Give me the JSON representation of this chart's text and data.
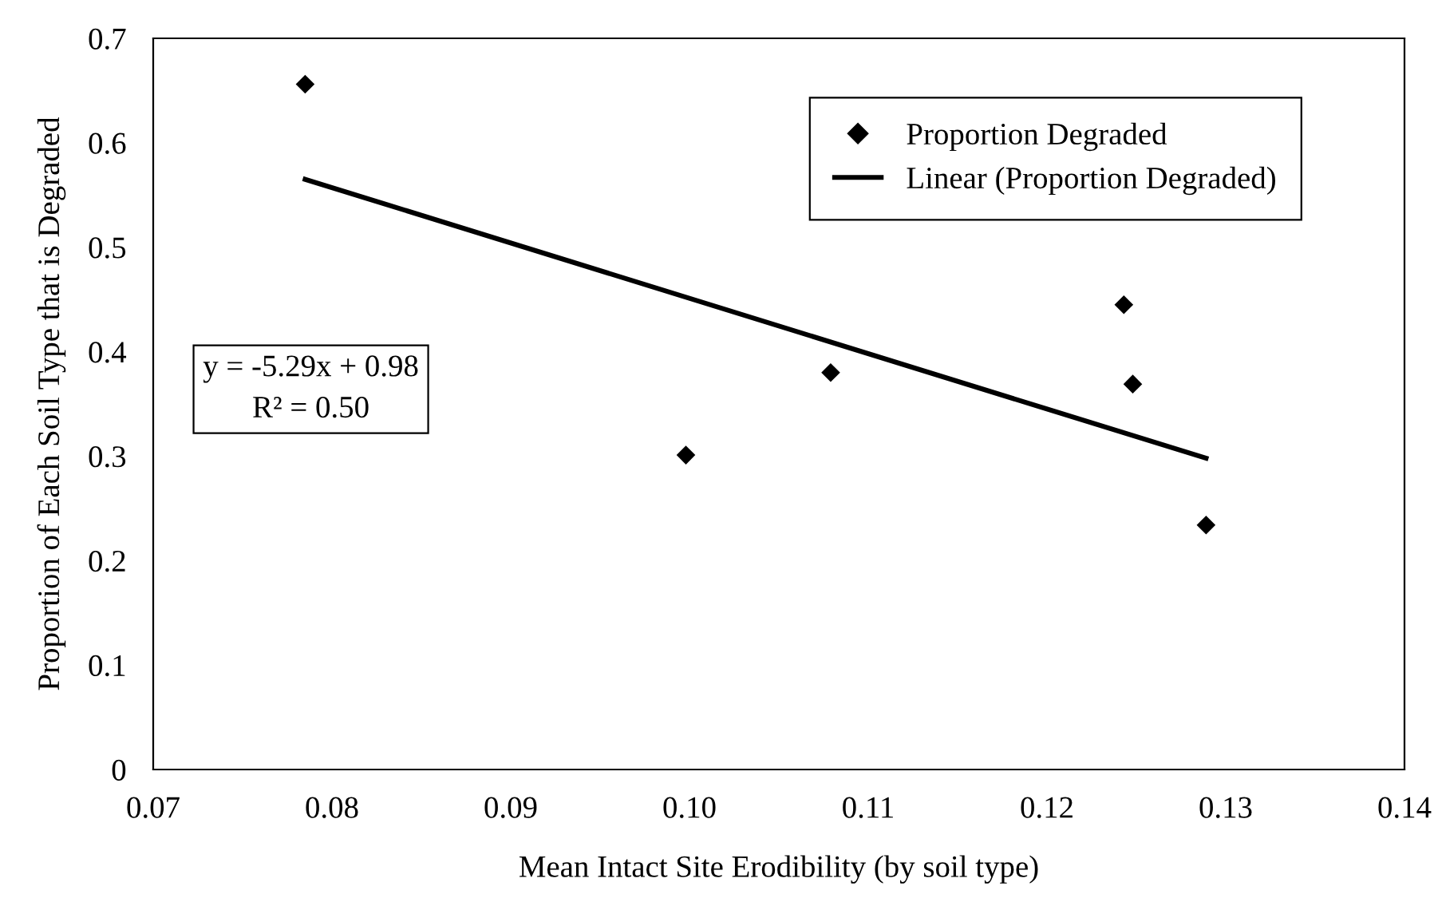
{
  "chart_data": {
    "type": "scatter",
    "xlabel": "Mean Intact Site Erodibility (by soil type)",
    "ylabel": "Proportion of Each Soil Type that is Degraded",
    "series": [
      {
        "name": "Proportion Degraded",
        "color": "#000000",
        "marker": "diamond",
        "x": [
          0.0785,
          0.0998,
          0.1079,
          0.1243,
          0.1248,
          0.1289
        ],
        "values": [
          0.656,
          0.301,
          0.38,
          0.445,
          0.369,
          0.234
        ]
      },
      {
        "name": "Linear (Proportion Degraded)",
        "type": "line",
        "color": "#000000",
        "line_style": "solid",
        "marker": "none",
        "x": [
          0.0785,
          0.1289
        ],
        "values": [
          0.565,
          0.298
        ]
      }
    ],
    "annotations": [
      "y = -5.29x + 0.98\nR² = 0.50"
    ],
    "xlim": [
      0.07,
      0.14
    ],
    "xticks": [
      {
        "value": 0.07,
        "label": "0.07"
      },
      {
        "value": 0.08,
        "label": "0.08"
      },
      {
        "value": 0.09,
        "label": "0.09"
      },
      {
        "value": 0.1,
        "label": "0.10"
      },
      {
        "value": 0.11,
        "label": "0.11"
      },
      {
        "value": 0.12,
        "label": "0.12"
      },
      {
        "value": 0.13,
        "label": "0.13"
      },
      {
        "value": 0.14,
        "label": "0.14"
      }
    ],
    "ylim": [
      0,
      0.7
    ],
    "yticks": [
      0,
      0.1,
      0.2,
      0.3,
      0.4,
      0.5,
      0.6,
      0.7
    ],
    "grid": false,
    "legend": "top right"
  }
}
